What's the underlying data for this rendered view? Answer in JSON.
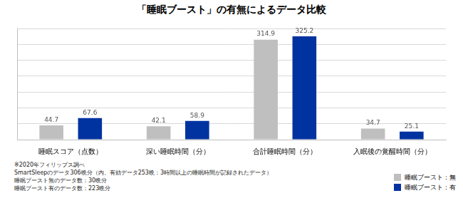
{
  "chart_data": {
    "type": "bar",
    "title": "「睡眠ブースト」の有無によるデータ比較",
    "categories": [
      "睡眠スコア（点数）",
      "深い睡眠時間（分）",
      "合計睡眠時間（分）",
      "入眠後の覚醒時間（分）"
    ],
    "series": [
      {
        "name": "睡眠ブースト：無",
        "color": "#bfbfbf",
        "values": [
          44.7,
          42.1,
          314.9,
          34.7
        ]
      },
      {
        "name": "睡眠ブースト：有",
        "color": "#0033a0",
        "values": [
          67.6,
          58.9,
          325.2,
          25.1
        ]
      }
    ],
    "ylim": [
      0,
      350
    ],
    "yticks": [
      0,
      50,
      100,
      150,
      200,
      250,
      300,
      350
    ],
    "grid": true,
    "data_labels": true,
    "tick_labels": "x",
    "legend": "bottom-right",
    "annotations": [
      "※2020年フィリップス調べ",
      "SmartSleepのデータ306晩分（内、有効データ253晩：3時間以上の睡眠時間が記録されたデータ）",
      "睡眠ブースト無のデータ数：30晩分",
      "睡眠ブースト有のデータ数：223晩分"
    ]
  }
}
